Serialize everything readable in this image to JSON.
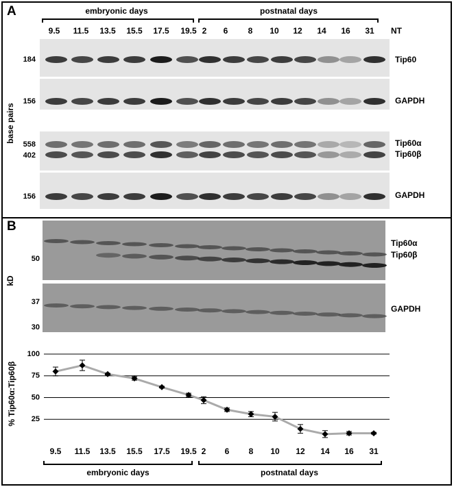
{
  "panel_a": {
    "label": "A",
    "group_labels": [
      "embryonic days",
      "postnatal days"
    ],
    "lanes": [
      "9.5",
      "11.5",
      "13.5",
      "15.5",
      "17.5",
      "19.5",
      "2",
      "6",
      "8",
      "10",
      "12",
      "14",
      "16",
      "31",
      "NT"
    ],
    "y_axis_label": "base pairs",
    "markers": [
      "184",
      "156",
      "558",
      "402",
      "156"
    ],
    "band_labels": [
      "Tip60",
      "GAPDH",
      "Tip60α",
      "Tip60β",
      "GAPDH"
    ]
  },
  "panel_b": {
    "label": "B",
    "y_axis_label": "kD",
    "markers": [
      "50",
      "37",
      "30"
    ],
    "band_labels": [
      "Tip60α",
      "Tip60β",
      "GAPDH"
    ]
  },
  "chart_data": {
    "type": "line",
    "y_axis_label": "% Tip60α:Tip60β",
    "categories": [
      "9.5",
      "11.5",
      "13.5",
      "15.5",
      "17.5",
      "19.5",
      "2",
      "6",
      "8",
      "10",
      "12",
      "14",
      "16",
      "31"
    ],
    "values": [
      80,
      87,
      77,
      72,
      62,
      53,
      47,
      36,
      31,
      28,
      14,
      8,
      9,
      9
    ],
    "errors": [
      5,
      6,
      1,
      2,
      1,
      2,
      4,
      2,
      3,
      5,
      5,
      4,
      2,
      1
    ],
    "color": "#aaaaaa",
    "marker_color": "#000000",
    "ylim": [
      0,
      100
    ],
    "yticks": [
      25,
      50,
      75,
      100
    ],
    "grid": true,
    "group_labels": [
      "embryonic days",
      "postnatal days"
    ]
  }
}
